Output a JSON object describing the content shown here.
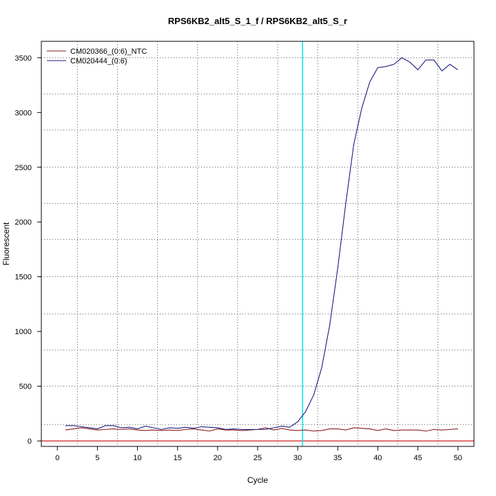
{
  "chart_data": {
    "type": "line",
    "title": "RPS6KB2_alt5_S_1_f / RPS6KB2_alt5_S_r",
    "xlabel": "Cycle",
    "ylabel": "Fluorescent",
    "xlim": [
      -2,
      52
    ],
    "ylim": [
      -50,
      3650
    ],
    "xticks": [
      0,
      5,
      10,
      15,
      20,
      25,
      30,
      35,
      40,
      45,
      50
    ],
    "yticks": [
      0,
      500,
      1000,
      1500,
      2000,
      2500,
      3000,
      3500
    ],
    "x_grid": [
      2.5,
      7.5,
      12.5,
      17.5,
      22.5,
      27.5,
      32.5,
      37.5,
      42.5,
      47.5
    ],
    "y_grid": [
      150,
      500,
      830,
      1160,
      1500,
      1840,
      2170,
      2500,
      2840,
      3170,
      3500
    ],
    "grid": true,
    "legend_position": "top-left",
    "threshold_x": 30.6,
    "threshold_color": "#00e5e5",
    "baseline_y": 0,
    "baseline_color": "#cc0000",
    "x": [
      1,
      2,
      3,
      4,
      5,
      6,
      7,
      8,
      9,
      10,
      11,
      12,
      13,
      14,
      15,
      16,
      17,
      18,
      19,
      20,
      21,
      22,
      23,
      24,
      25,
      26,
      27,
      28,
      29,
      30,
      31,
      32,
      33,
      34,
      35,
      36,
      37,
      38,
      39,
      40,
      41,
      42,
      43,
      44,
      45,
      46,
      47,
      48,
      49,
      50
    ],
    "series": [
      {
        "name": "CM020366_(0:6)_NTC",
        "color": "#8b1a1a",
        "values": [
          100,
          110,
          120,
          110,
          100,
          105,
          110,
          105,
          110,
          100,
          95,
          100,
          95,
          100,
          95,
          105,
          110,
          100,
          90,
          110,
          100,
          100,
          95,
          100,
          105,
          120,
          100,
          115,
          100,
          95,
          100,
          90,
          95,
          110,
          110,
          100,
          120,
          115,
          110,
          95,
          110,
          95,
          100,
          100,
          100,
          90,
          105,
          100,
          105,
          110
        ]
      },
      {
        "name": "CM020444_(0:6)",
        "color": "#1a1a80",
        "values": [
          140,
          140,
          130,
          120,
          110,
          140,
          140,
          120,
          125,
          110,
          135,
          120,
          105,
          120,
          115,
          125,
          115,
          130,
          125,
          120,
          105,
          110,
          105,
          105,
          105,
          105,
          120,
          135,
          125,
          175,
          270,
          420,
          670,
          1060,
          1580,
          2170,
          2710,
          3040,
          3280,
          3410,
          3420,
          3440,
          3500,
          3460,
          3390,
          3480,
          3480,
          3380,
          3440,
          3390
        ]
      }
    ]
  }
}
